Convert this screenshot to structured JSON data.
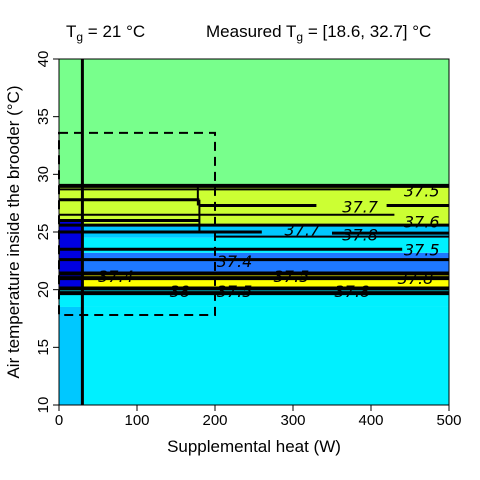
{
  "chart_data": {
    "type": "heatmap",
    "title_left": {
      "main": "T",
      "sub": "g",
      "rest": " = 21 °C"
    },
    "title_right": {
      "main": "Measured T",
      "sub": "g",
      "rest": " = [18.6, 32.7] °C"
    },
    "xlabel": "Supplemental heat (W)",
    "ylabel": "Air temperature inside the brooder (°C)",
    "xlim": [
      0,
      500
    ],
    "ylim": [
      10,
      40
    ],
    "xticks": [
      0,
      100,
      200,
      300,
      400,
      500
    ],
    "yticks": [
      10,
      15,
      20,
      25,
      30,
      35,
      40
    ],
    "bands": [
      {
        "y": [
          10,
          18.5
        ],
        "x": [
          0,
          30
        ],
        "color": "#00c8ff"
      },
      {
        "y": [
          10,
          18.5
        ],
        "x": [
          30,
          500
        ],
        "color": "#00f0ff"
      },
      {
        "y": [
          18.5,
          20
        ],
        "x": [
          0,
          500
        ],
        "color": "#00f0ff"
      },
      {
        "y": [
          20,
          21.3
        ],
        "x": [
          0,
          500
        ],
        "color": "#ffff00"
      },
      {
        "y": [
          21.3,
          23.2
        ],
        "x": [
          0,
          500
        ],
        "color": "#1e78ff"
      },
      {
        "y": [
          23.2,
          24.5
        ],
        "x": [
          0,
          500
        ],
        "color": "#00f0ff"
      },
      {
        "y": [
          24.5,
          25.5
        ],
        "x": [
          0,
          500
        ],
        "color": "#00c8ff"
      },
      {
        "y": [
          25.5,
          29
        ],
        "x": [
          0,
          500
        ],
        "color": "#ccff33"
      },
      {
        "y": [
          29,
          40
        ],
        "x": [
          0,
          500
        ],
        "color": "#78ff8c"
      },
      {
        "y": [
          20,
          26
        ],
        "x": [
          0,
          30
        ],
        "color": "#0000e0"
      }
    ],
    "contours": [
      {
        "y": 29.0,
        "x": [
          0,
          500
        ],
        "w": 4
      },
      {
        "y": 28.7,
        "x": [
          0,
          425
        ],
        "w": 2
      },
      {
        "y": 27.8,
        "x": [
          0,
          180
        ],
        "w": 3
      },
      {
        "y": 27.3,
        "x": [
          180,
          330
        ],
        "w": 3
      },
      {
        "y": 27.3,
        "x": [
          420,
          500
        ],
        "w": 3
      },
      {
        "y": 26.5,
        "x": [
          0,
          430
        ],
        "w": 2
      },
      {
        "y": 26.0,
        "x": [
          0,
          180
        ],
        "w": 3
      },
      {
        "y": 25.6,
        "x": [
          0,
          500
        ],
        "w": 3
      },
      {
        "y": 25.0,
        "x": [
          0,
          260
        ],
        "w": 3
      },
      {
        "y": 24.9,
        "x": [
          350,
          500
        ],
        "w": 3
      },
      {
        "y": 24.6,
        "x": [
          200,
          500
        ],
        "w": 2
      },
      {
        "y": 23.5,
        "x": [
          0,
          440
        ],
        "w": 3
      },
      {
        "y": 22.6,
        "x": [
          0,
          500
        ],
        "w": 3
      },
      {
        "y": 21.4,
        "x": [
          0,
          500
        ],
        "w": 4
      },
      {
        "y": 21.0,
        "x": [
          0,
          500
        ],
        "w": 4
      },
      {
        "y": 20.1,
        "x": [
          0,
          500
        ],
        "w": 4
      },
      {
        "y": 19.7,
        "x": [
          0,
          500
        ],
        "w": 4
      }
    ],
    "contour_verticals": [
      {
        "x": 30,
        "y": [
          10,
          40
        ],
        "w": 3
      },
      {
        "x": 178,
        "y": [
          27.3,
          29.0
        ],
        "w": 2
      },
      {
        "x": 180,
        "y": [
          25.0,
          27.8
        ],
        "w": 2
      }
    ],
    "contour_labels": [
      {
        "text": "37.5",
        "x": 465,
        "y": 28.6
      },
      {
        "text": "37.7",
        "x": 386,
        "y": 27.2
      },
      {
        "text": "37.6",
        "x": 465,
        "y": 25.9
      },
      {
        "text": "37.7",
        "x": 312,
        "y": 25.2
      },
      {
        "text": "37.8",
        "x": 386,
        "y": 24.8
      },
      {
        "text": "37.5",
        "x": 465,
        "y": 23.5
      },
      {
        "text": "37.4",
        "x": 225,
        "y": 22.5
      },
      {
        "text": "37.4",
        "x": 73,
        "y": 21.2
      },
      {
        "text": "37.5",
        "x": 298,
        "y": 21.2
      },
      {
        "text": "37.8",
        "x": 457,
        "y": 21.0
      },
      {
        "text": "38",
        "x": 155,
        "y": 19.9
      },
      {
        "text": "37.5",
        "x": 225,
        "y": 19.9
      },
      {
        "text": "37.8",
        "x": 376,
        "y": 19.9
      }
    ],
    "measured_box": {
      "x": [
        0,
        200
      ],
      "y": [
        17.8,
        33.6
      ]
    }
  }
}
